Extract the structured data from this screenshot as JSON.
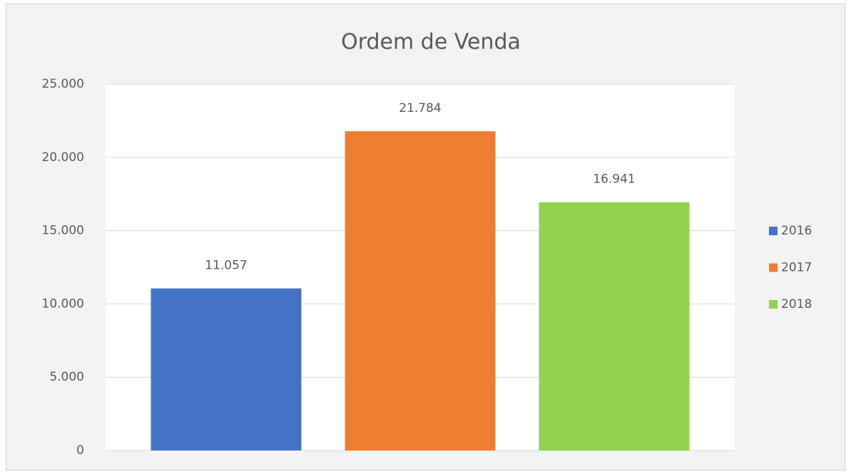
{
  "chart_data": {
    "type": "bar",
    "title": "Ordem de Venda",
    "series": [
      {
        "name": "2016",
        "color": "#4472c4",
        "values": [
          11057
        ],
        "value_labels": [
          "11.057"
        ]
      },
      {
        "name": "2017",
        "color": "#ed7d31",
        "values": [
          21784
        ],
        "value_labels": [
          "21.784"
        ]
      },
      {
        "name": "2018",
        "color": "#92d050",
        "values": [
          16941
        ],
        "value_labels": [
          "16.941"
        ]
      }
    ],
    "ylim": [
      0,
      25000
    ],
    "yticks": [
      0,
      {
        "value": 5000,
        "label": "5.000"
      },
      {
        "value": 10000,
        "label": "10.000"
      },
      {
        "value": 15000,
        "label": "15.000"
      },
      {
        "value": 20000,
        "label": "20.000"
      },
      {
        "value": 25000,
        "label": "25.000"
      }
    ],
    "grid": true,
    "legend": "right"
  }
}
